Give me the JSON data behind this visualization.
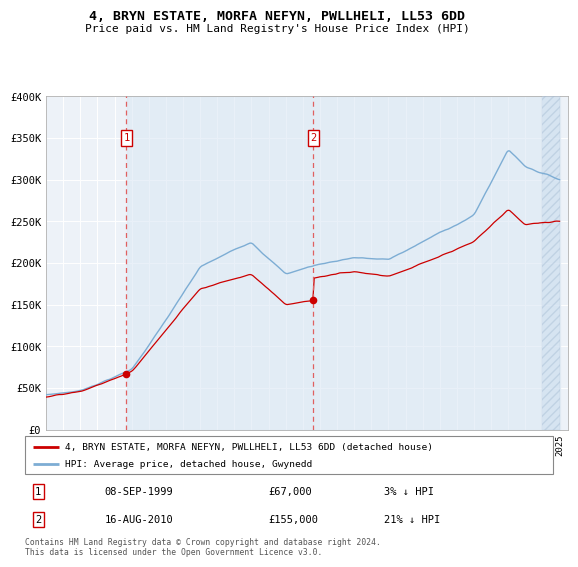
{
  "title": "4, BRYN ESTATE, MORFA NEFYN, PWLLHELI, LL53 6DD",
  "subtitle": "Price paid vs. HM Land Registry's House Price Index (HPI)",
  "ylim": [
    0,
    400000
  ],
  "yticks": [
    0,
    50000,
    100000,
    150000,
    200000,
    250000,
    300000,
    350000,
    400000
  ],
  "ytick_labels": [
    "£0",
    "£50K",
    "£100K",
    "£150K",
    "£200K",
    "£250K",
    "£300K",
    "£350K",
    "£400K"
  ],
  "sale1_year": 1999.69,
  "sale1_price": 67000,
  "sale1_label": "08-SEP-1999",
  "sale1_amount": "£67,000",
  "sale1_hpi": "3% ↓ HPI",
  "sale2_year": 2010.62,
  "sale2_price": 155000,
  "sale2_label": "16-AUG-2010",
  "sale2_amount": "£155,000",
  "sale2_hpi": "21% ↓ HPI",
  "hpi_line_color": "#7dadd4",
  "price_line_color": "#cc0000",
  "marker_color": "#cc0000",
  "shade_color": "#dce8f4",
  "plot_bg": "#edf2f8",
  "footer": "Contains HM Land Registry data © Crown copyright and database right 2024.\nThis data is licensed under the Open Government Licence v3.0.",
  "legend_line1": "4, BRYN ESTATE, MORFA NEFYN, PWLLHELI, LL53 6DD (detached house)",
  "legend_line2": "HPI: Average price, detached house, Gwynedd"
}
